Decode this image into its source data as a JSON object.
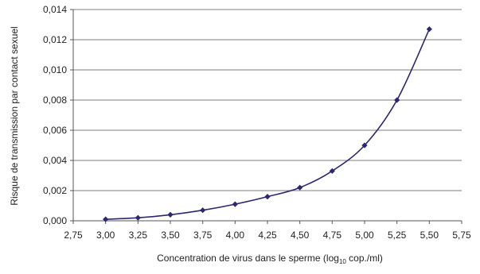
{
  "chart_data": {
    "type": "line",
    "xlabel_prefix": "Concentration de virus dans le sperme (log",
    "xlabel_sub": "10",
    "xlabel_suffix": " cop./ml)",
    "ylabel": "Risque de transmission par contact sexuel",
    "xlim": [
      2.75,
      5.75
    ],
    "ylim": [
      0,
      0.014
    ],
    "x_ticks": [
      2.75,
      3.0,
      3.25,
      3.5,
      3.75,
      4.0,
      4.25,
      4.5,
      4.75,
      5.0,
      5.25,
      5.5,
      5.75
    ],
    "x_tick_labels": [
      "2,75",
      "3,00",
      "3,25",
      "3,50",
      "3,75",
      "4,00",
      "4,25",
      "4,50",
      "4,75",
      "5,00",
      "5,25",
      "5,50",
      "5,75"
    ],
    "y_ticks": [
      0,
      0.002,
      0.004,
      0.006,
      0.008,
      0.01,
      0.012,
      0.014
    ],
    "y_tick_labels": [
      "0,000",
      "0,002",
      "0,004",
      "0,006",
      "0,008",
      "0,010",
      "0,012",
      "0,014"
    ],
    "grid": true,
    "series": [
      {
        "color": "#2b2770",
        "x": [
          3.0,
          3.25,
          3.5,
          3.75,
          4.0,
          4.25,
          4.5,
          4.75,
          5.0,
          5.25,
          5.5
        ],
        "y": [
          0.0001,
          0.0002,
          0.0004,
          0.0007,
          0.0011,
          0.0016,
          0.0022,
          0.0033,
          0.005,
          0.008,
          0.0127
        ]
      }
    ]
  }
}
